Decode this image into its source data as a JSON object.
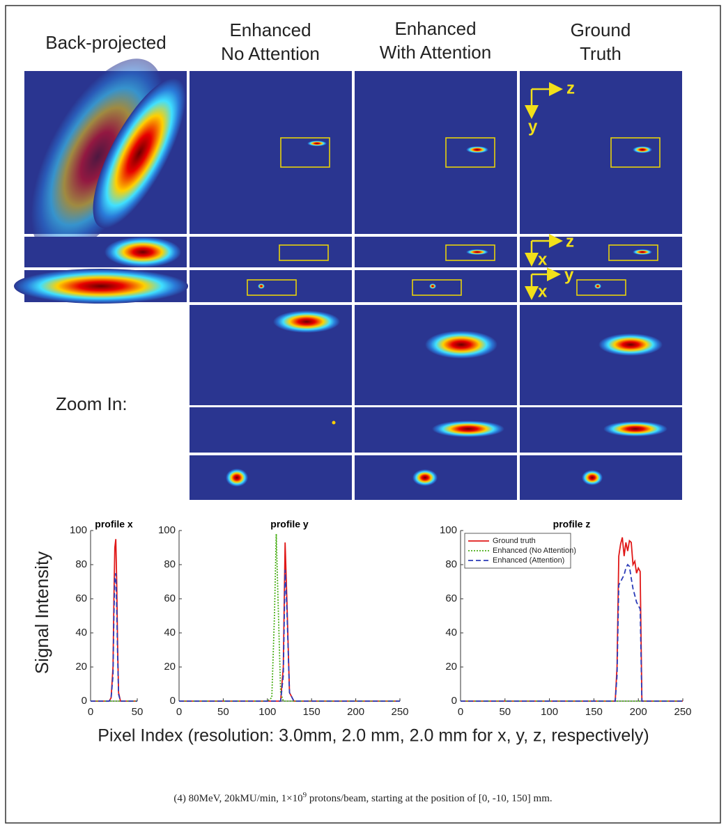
{
  "headers": [
    [
      "Back-projected"
    ],
    [
      "Enhanced",
      "No Attention"
    ],
    [
      "Enhanced",
      "With Attention"
    ],
    [
      "Ground",
      "Truth"
    ]
  ],
  "zoom_label": "Zoom In:",
  "annotations": {
    "zy": [
      "z",
      "y"
    ],
    "zx": [
      "z",
      "x"
    ],
    "yx": [
      "y",
      "x"
    ]
  },
  "y_label": "Signal Intensity",
  "x_label": "Pixel Index (resolution: 3.0mm, 2.0 mm, 2.0 mm for x, y, z, respectively)",
  "caption": {
    "before": "(4) 80MeV, 20kMU/min, 1×10",
    "exponent": "9",
    "after": " protons/beam, starting at the position of [0, -10, 150] mm."
  },
  "chart_data": [
    {
      "type": "line",
      "title": "profile x",
      "x": [
        0,
        20,
        22,
        24,
        25,
        26,
        27,
        28,
        29,
        30,
        32,
        50
      ],
      "series": [
        {
          "color": "#e01818",
          "style": "solid",
          "values": [
            0,
            0,
            2,
            20,
            60,
            90,
            95,
            70,
            30,
            5,
            0,
            0
          ]
        },
        {
          "color": "#4caf1a",
          "style": "dotted",
          "values": [
            0,
            0,
            0,
            0,
            0,
            0,
            0,
            0,
            0,
            0,
            0,
            0
          ]
        },
        {
          "color": "#2b3bb8",
          "style": "dashed",
          "values": [
            0,
            0,
            2,
            15,
            50,
            72,
            75,
            55,
            25,
            4,
            0,
            0
          ]
        }
      ],
      "xlim": [
        0,
        50
      ],
      "xticks": [
        0,
        50
      ],
      "ylim": [
        0,
        100
      ],
      "yticks": [
        0,
        20,
        40,
        60,
        80,
        100
      ]
    },
    {
      "type": "line",
      "title": "profile y",
      "x": [
        0,
        100,
        105,
        108,
        110,
        112,
        115,
        118,
        120,
        122,
        125,
        130,
        250
      ],
      "series": [
        {
          "color": "#e01818",
          "style": "solid",
          "values": [
            0,
            0,
            0,
            0,
            0,
            0,
            0,
            20,
            93,
            60,
            5,
            0,
            0
          ]
        },
        {
          "color": "#4caf1a",
          "style": "dotted",
          "values": [
            0,
            0,
            2,
            50,
            98,
            60,
            5,
            0,
            0,
            0,
            0,
            0,
            0
          ]
        },
        {
          "color": "#2b3bb8",
          "style": "dashed",
          "values": [
            0,
            0,
            0,
            0,
            0,
            0,
            0,
            15,
            77,
            55,
            5,
            0,
            0
          ]
        }
      ],
      "xlim": [
        0,
        250
      ],
      "xticks": [
        0,
        50,
        100,
        150,
        200,
        250
      ],
      "ylim": [
        0,
        100
      ],
      "yticks": [
        0,
        20,
        40,
        60,
        80,
        100
      ]
    },
    {
      "type": "line",
      "title": "profile z",
      "x": [
        0,
        170,
        174,
        176,
        178,
        180,
        182,
        184,
        186,
        188,
        190,
        192,
        194,
        196,
        198,
        200,
        202,
        204,
        206,
        250
      ],
      "series": [
        {
          "name": "Ground truth",
          "color": "#e01818",
          "style": "solid",
          "values": [
            0,
            0,
            0,
            20,
            85,
            92,
            96,
            85,
            93,
            88,
            94,
            93,
            80,
            82,
            75,
            78,
            76,
            0,
            0,
            0
          ]
        },
        {
          "name": "Enhanced (No Attention)",
          "color": "#4caf1a",
          "style": "dotted",
          "values": [
            0,
            0,
            0,
            0,
            0,
            0,
            0,
            0,
            0,
            0,
            0,
            0,
            0,
            0,
            0,
            0,
            0,
            0,
            0,
            0
          ]
        },
        {
          "name": "Enhanced (Attention)",
          "color": "#2b3bb8",
          "style": "dashed",
          "values": [
            0,
            0,
            0,
            15,
            68,
            70,
            72,
            74,
            78,
            80,
            79,
            72,
            66,
            62,
            58,
            56,
            54,
            0,
            0,
            0
          ]
        }
      ],
      "xlim": [
        0,
        250
      ],
      "xticks": [
        0,
        50,
        100,
        150,
        200,
        250
      ],
      "ylim": [
        0,
        100
      ],
      "yticks": [
        0,
        20,
        40,
        60,
        80,
        100
      ],
      "legend": "upper left"
    }
  ]
}
